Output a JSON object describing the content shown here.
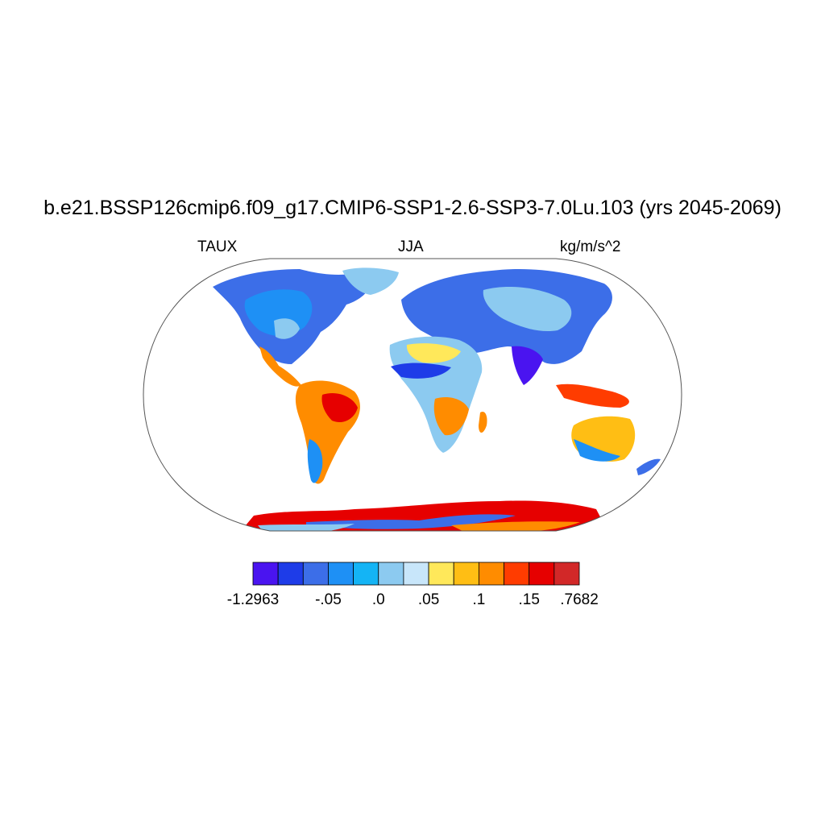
{
  "title": "b.e21.BSSP126cmip6.f09_g17.CMIP6-SSP1-2.6-SSP3-7.0Lu.103 (yrs 2045-2069)",
  "left_label": "TAUX",
  "center_label": "JJA",
  "right_label": "kg/m/s^2",
  "colorbar": {
    "colors": [
      "#4a14f0",
      "#1e3ce8",
      "#3c6ee8",
      "#1e90f5",
      "#14b4f5",
      "#8ccaf0",
      "#c8e6fa",
      "#ffe85a",
      "#ffbe14",
      "#ff8c00",
      "#ff3c00",
      "#e60000",
      "#d22828"
    ],
    "labels": [
      "-1.2963",
      "-.05",
      ".0",
      ".05",
      ".1",
      ".15",
      ".7682"
    ]
  },
  "colors": {
    "ocean": "#ffffff",
    "coast": "#000000",
    "frame": "#555555"
  }
}
